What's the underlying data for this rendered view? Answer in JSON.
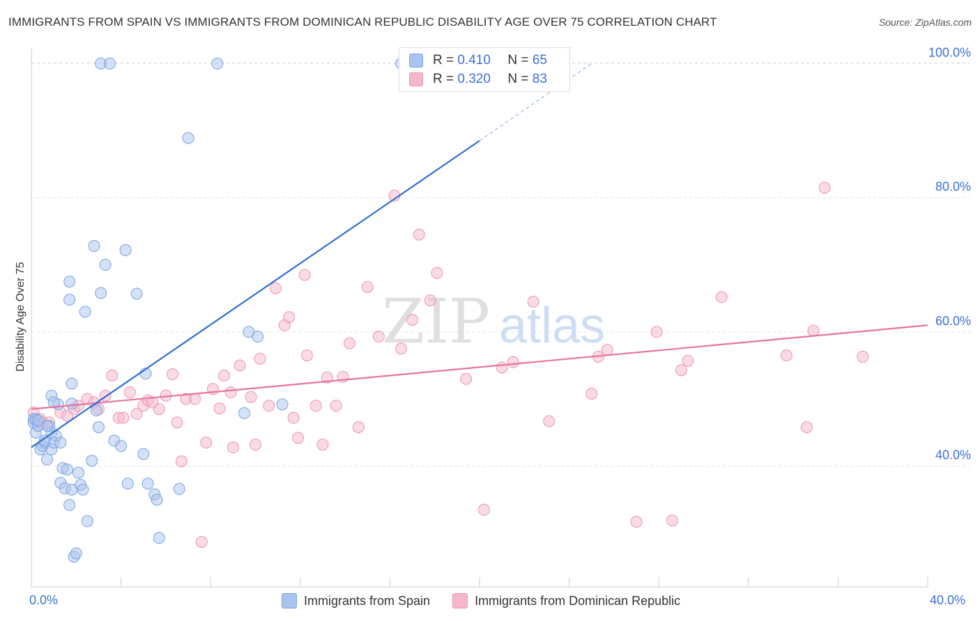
{
  "title": "IMMIGRANTS FROM SPAIN VS IMMIGRANTS FROM DOMINICAN REPUBLIC DISABILITY AGE OVER 75 CORRELATION CHART",
  "source": "Source: ZipAtlas.com",
  "watermark": {
    "zip": "ZIP",
    "atlas": "atlas"
  },
  "legend_top": {
    "spain": {
      "r_label": "R =",
      "r_value": "0.410",
      "n_label": "N =",
      "n_value": "65"
    },
    "dominican": {
      "r_label": "R =",
      "r_value": "0.320",
      "n_label": "N =",
      "n_value": "83"
    }
  },
  "legend_bottom": {
    "spain": "Immigrants from Spain",
    "dominican": "Immigrants from Dominican Republic"
  },
  "colors": {
    "spain_fill": "#a9c4ee",
    "spain_stroke": "#7aa3e0",
    "spain_line": "#2f6fd0",
    "dom_fill": "#f5b8cb",
    "dom_stroke": "#ee93b0",
    "dom_line": "#e7739c",
    "axis_text": "#3b6fd6",
    "grid": "#e3e3e3"
  },
  "chart_data": {
    "type": "scatter",
    "title": "IMMIGRANTS FROM SPAIN VS IMMIGRANTS FROM DOMINICAN REPUBLIC DISABILITY AGE OVER 75 CORRELATION CHART",
    "xlabel": "",
    "ylabel": "Disability Age Over 75",
    "xlim": [
      0,
      40
    ],
    "ylim": [
      22,
      102
    ],
    "x_tick_labels": [
      "0.0%",
      "40.0%"
    ],
    "y_ticks": [
      40,
      60,
      80,
      100
    ],
    "y_tick_labels": [
      "40.0%",
      "60.0%",
      "80.0%",
      "100.0%"
    ],
    "series": [
      {
        "name": "Immigrants from Spain",
        "R": 0.41,
        "N": 65,
        "trend": {
          "x0": 0.0,
          "y0": 42.8,
          "x1": 20.0,
          "y1": 88.5,
          "dash_to_x": 25.0,
          "dash_to_y": 100.0
        },
        "points": [
          [
            0.1,
            47
          ],
          [
            0.1,
            46.5
          ],
          [
            0.2,
            45
          ],
          [
            0.2,
            47
          ],
          [
            0.3,
            46
          ],
          [
            0.3,
            46.8
          ],
          [
            0.4,
            42.5
          ],
          [
            0.5,
            43
          ],
          [
            0.6,
            43.5
          ],
          [
            0.7,
            41
          ],
          [
            0.8,
            46
          ],
          [
            0.9,
            42.5
          ],
          [
            0.9,
            45
          ],
          [
            1.0,
            43.5
          ],
          [
            1.1,
            44.5
          ],
          [
            1.2,
            49.2
          ],
          [
            1.3,
            43.5
          ],
          [
            1.3,
            37.5
          ],
          [
            1.4,
            39.7
          ],
          [
            1.5,
            36.7
          ],
          [
            1.6,
            39.5
          ],
          [
            1.7,
            34.2
          ],
          [
            1.8,
            36.5
          ],
          [
            1.9,
            26.5
          ],
          [
            2.0,
            27
          ],
          [
            2.1,
            39
          ],
          [
            2.2,
            37.2
          ],
          [
            2.3,
            36.5
          ],
          [
            2.5,
            31.8
          ],
          [
            2.7,
            40.8
          ],
          [
            2.9,
            48.3
          ],
          [
            3.0,
            45.8
          ],
          [
            3.1,
            65.8
          ],
          [
            3.1,
            100
          ],
          [
            3.3,
            70
          ],
          [
            3.5,
            100
          ],
          [
            3.7,
            43.8
          ],
          [
            4.0,
            43
          ],
          [
            4.2,
            72.2
          ],
          [
            4.3,
            37.4
          ],
          [
            4.7,
            65.7
          ],
          [
            5.0,
            41.8
          ],
          [
            5.1,
            53.8
          ],
          [
            5.2,
            37.4
          ],
          [
            5.5,
            35.8
          ],
          [
            5.6,
            35
          ],
          [
            5.7,
            29.3
          ],
          [
            6.6,
            36.6
          ],
          [
            7.0,
            88.9
          ],
          [
            8.3,
            100
          ],
          [
            9.5,
            47.9
          ],
          [
            9.7,
            60
          ],
          [
            10.1,
            59.3
          ],
          [
            11.2,
            49.2
          ],
          [
            16.5,
            100
          ],
          [
            0.6,
            43.8
          ],
          [
            1.7,
            67.5
          ],
          [
            2.4,
            63
          ],
          [
            2.8,
            72.8
          ],
          [
            1.7,
            64.8
          ],
          [
            0.9,
            50.5
          ],
          [
            1.0,
            49.5
          ],
          [
            1.8,
            49.3
          ],
          [
            1.8,
            52.3
          ],
          [
            0.7,
            46
          ]
        ]
      },
      {
        "name": "Immigrants from Dominican Republic",
        "R": 0.32,
        "N": 83,
        "trend": {
          "x0": 0.0,
          "y0": 48.5,
          "x1": 40.0,
          "y1": 61.0
        },
        "points": [
          [
            0.1,
            48
          ],
          [
            0.2,
            46.8
          ],
          [
            0.4,
            47
          ],
          [
            0.5,
            46.5
          ],
          [
            0.8,
            46.5
          ],
          [
            1.3,
            48
          ],
          [
            1.6,
            47.5
          ],
          [
            1.9,
            48.5
          ],
          [
            2.1,
            49
          ],
          [
            2.5,
            50
          ],
          [
            2.8,
            49.5
          ],
          [
            3.0,
            48.5
          ],
          [
            3.3,
            50.5
          ],
          [
            3.6,
            53.5
          ],
          [
            3.9,
            47.2
          ],
          [
            4.1,
            47.2
          ],
          [
            4.4,
            51
          ],
          [
            4.7,
            47.8
          ],
          [
            5.0,
            49
          ],
          [
            5.2,
            49.8
          ],
          [
            5.4,
            49.5
          ],
          [
            5.7,
            48.5
          ],
          [
            6.0,
            50.5
          ],
          [
            6.3,
            53.7
          ],
          [
            6.5,
            46.5
          ],
          [
            6.7,
            40.7
          ],
          [
            6.9,
            50
          ],
          [
            7.3,
            50
          ],
          [
            7.6,
            28.7
          ],
          [
            7.8,
            43.5
          ],
          [
            8.1,
            51.5
          ],
          [
            8.4,
            48.6
          ],
          [
            8.6,
            53.5
          ],
          [
            8.9,
            51
          ],
          [
            9.0,
            42.8
          ],
          [
            9.3,
            55
          ],
          [
            9.8,
            50.3
          ],
          [
            10.0,
            43.2
          ],
          [
            10.2,
            56
          ],
          [
            10.6,
            49
          ],
          [
            10.9,
            66.5
          ],
          [
            11.3,
            61
          ],
          [
            11.5,
            62.2
          ],
          [
            11.7,
            47.2
          ],
          [
            11.9,
            44.2
          ],
          [
            12.2,
            68.5
          ],
          [
            12.3,
            56.5
          ],
          [
            12.7,
            49
          ],
          [
            13.0,
            43.2
          ],
          [
            13.2,
            53.2
          ],
          [
            13.6,
            49
          ],
          [
            13.9,
            53.3
          ],
          [
            14.2,
            58.3
          ],
          [
            14.6,
            45.8
          ],
          [
            15.0,
            66.7
          ],
          [
            15.5,
            59.3
          ],
          [
            16.2,
            80.3
          ],
          [
            16.5,
            57.5
          ],
          [
            17.0,
            61.8
          ],
          [
            17.3,
            74.5
          ],
          [
            17.8,
            64.7
          ],
          [
            18.1,
            68.8
          ],
          [
            19.4,
            53
          ],
          [
            20.2,
            33.5
          ],
          [
            21.0,
            54.7
          ],
          [
            21.5,
            55.5
          ],
          [
            22.4,
            64.5
          ],
          [
            23.1,
            46.7
          ],
          [
            25.0,
            50.8
          ],
          [
            25.3,
            56.3
          ],
          [
            25.7,
            57.3
          ],
          [
            27.0,
            31.7
          ],
          [
            27.9,
            60
          ],
          [
            28.6,
            31.9
          ],
          [
            29.0,
            54.3
          ],
          [
            29.3,
            55.7
          ],
          [
            30.8,
            65.2
          ],
          [
            33.7,
            56.5
          ],
          [
            34.6,
            45.8
          ],
          [
            34.9,
            60.2
          ],
          [
            35.4,
            81.5
          ],
          [
            37.1,
            56.3
          ],
          [
            0.3,
            46
          ]
        ]
      }
    ]
  }
}
